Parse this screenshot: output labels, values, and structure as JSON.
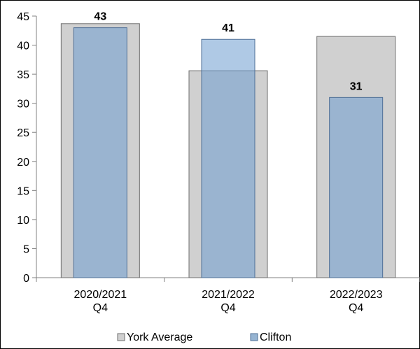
{
  "chart_data": {
    "type": "bar",
    "categories": [
      "2020/2021\nQ4",
      "2021/2022\nQ4",
      "2022/2023\nQ4"
    ],
    "series": [
      {
        "name": "York Average",
        "values": [
          43.7,
          35.6,
          41.5
        ],
        "color": "#d0d0d0",
        "show_data_labels": false
      },
      {
        "name": "Clifton",
        "values": [
          43,
          41,
          31
        ],
        "color": "#96b4d2",
        "overlap_color": "#91aecb",
        "show_data_labels": true
      }
    ],
    "ylim": [
      0,
      45
    ],
    "yticks": [
      0,
      5,
      10,
      15,
      20,
      25,
      30,
      35,
      40,
      45
    ],
    "grid": false,
    "legend": "bottom",
    "bar_overlap": true
  }
}
